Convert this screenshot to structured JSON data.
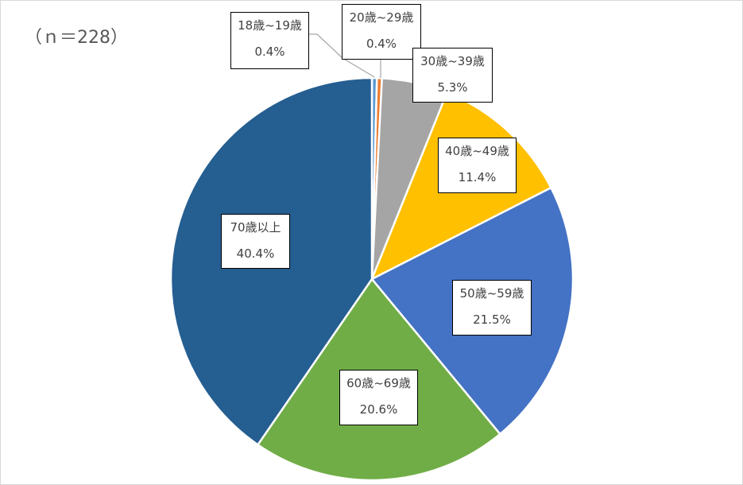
{
  "note": "（ｎ＝228）",
  "chart_data": {
    "type": "pie",
    "slices": [
      {
        "label": "18歳~19歳",
        "value": 0.4,
        "value_text": "0.4%",
        "color": "#5b9bd5"
      },
      {
        "label": "20歳~29歳",
        "value": 0.4,
        "value_text": "0.4%",
        "color": "#ed7d31"
      },
      {
        "label": "30歳~39歳",
        "value": 5.3,
        "value_text": "5.3%",
        "color": "#a5a5a5"
      },
      {
        "label": "40歳~49歳",
        "value": 11.4,
        "value_text": "11.4%",
        "color": "#ffc000"
      },
      {
        "label": "50歳~59歳",
        "value": 21.5,
        "value_text": "21.5%",
        "color": "#4472c4"
      },
      {
        "label": "60歳~69歳",
        "value": 20.6,
        "value_text": "20.6%",
        "color": "#70ad47"
      },
      {
        "label": "70歳以上",
        "value": 40.4,
        "value_text": "40.4%",
        "color": "#255e91"
      }
    ]
  }
}
